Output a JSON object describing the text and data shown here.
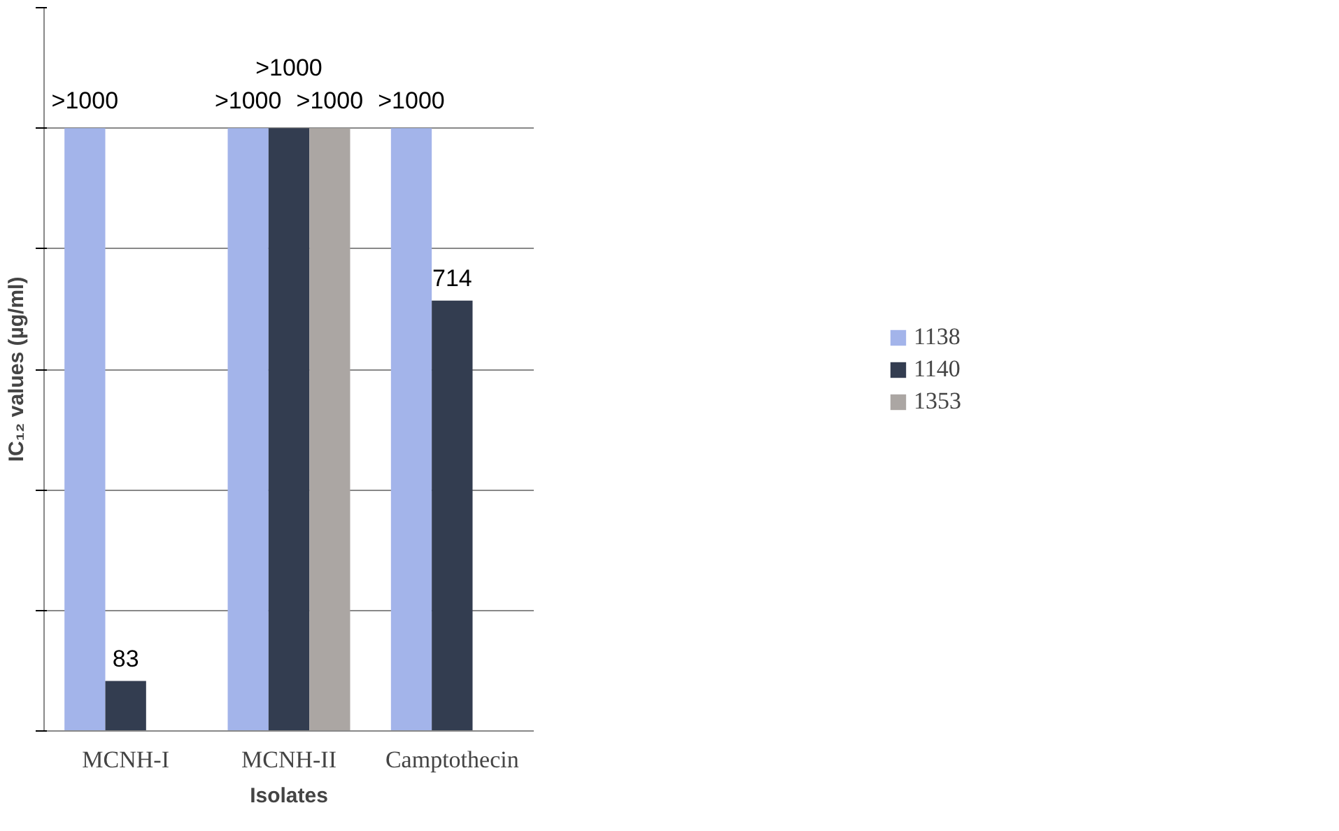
{
  "chart_data": {
    "type": "bar",
    "xlabel": "Isolates",
    "ylabel": "IC₁₂ values (µg/ml)",
    "categories": [
      "MCNH-I",
      "MCNH-II",
      "Camptothecin"
    ],
    "series": [
      {
        "name": "1138",
        "color": "#a3b4ea",
        "values": [
          1000,
          1000,
          1000
        ],
        "value_labels": [
          ">1000",
          ">1000",
          ">1000"
        ]
      },
      {
        "name": "1140",
        "color": "#333d50",
        "values": [
          83,
          1000,
          714
        ],
        "value_labels": [
          "83",
          ">1000",
          "714"
        ]
      },
      {
        "name": "1353",
        "color": "#aba6a3",
        "values": [
          null,
          1000,
          null
        ],
        "value_labels": [
          null,
          ">1000",
          null
        ]
      }
    ],
    "ylim": [
      0,
      1200
    ],
    "yticks": [
      {
        "value": 0,
        "label": null
      },
      {
        "value": 200,
        "label": null
      },
      {
        "value": 400,
        "label": null
      },
      {
        "value": 600,
        "label": null
      },
      {
        "value": 800,
        "label": null
      },
      {
        "value": 1000,
        "label": null
      },
      {
        "value": 1200,
        "label": null
      }
    ],
    "tick_labels": "x",
    "grid": "y",
    "legend": "right"
  }
}
